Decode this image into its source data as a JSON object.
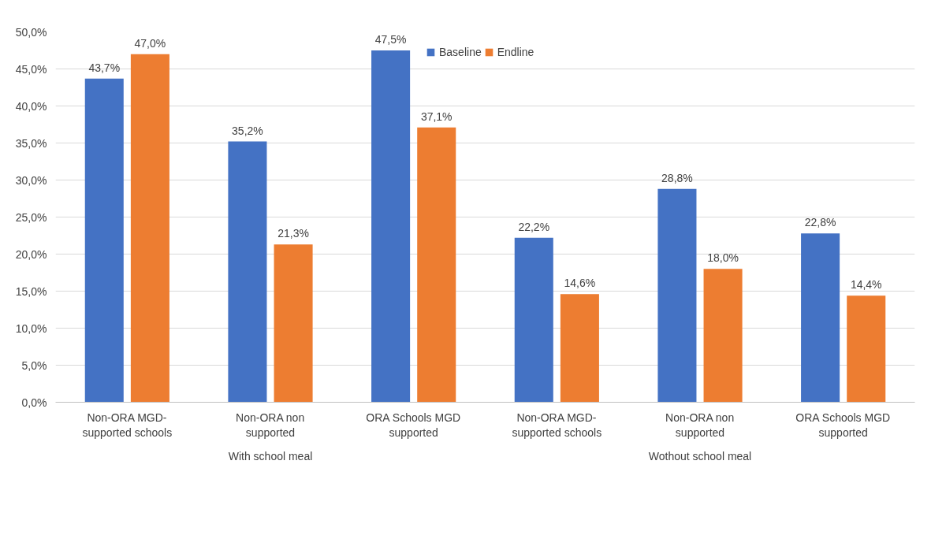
{
  "chart_data": {
    "type": "bar",
    "categories": [
      "Non-ORA MGD-supported schools",
      "Non-ORA non supported",
      "ORA Schools MGD supported",
      "Non-ORA MGD-supported schools",
      "Non-ORA non supported",
      "ORA Schools MGD supported"
    ],
    "series": [
      {
        "name": "Baseline",
        "color": "#4472c4",
        "values": [
          43.7,
          35.2,
          47.5,
          22.2,
          28.8,
          22.8
        ],
        "value_labels": [
          "43,7%",
          "35,2%",
          "47,5%",
          "22,2%",
          "28,8%",
          "22,8%"
        ]
      },
      {
        "name": "Endline",
        "color": "#ed7d31",
        "values": [
          47.0,
          21.3,
          37.1,
          14.6,
          18.0,
          14.4
        ],
        "value_labels": [
          "47,0%",
          "21,3%",
          "37,1%",
          "14,6%",
          "18,0%",
          "14,4%"
        ]
      }
    ],
    "annotations": [
      "With school meal",
      "Wothout school meal"
    ],
    "ylim": [
      0,
      50
    ],
    "yticks": [
      {
        "value": 0,
        "label": "0,0%"
      },
      {
        "value": 5,
        "label": "5,0%"
      },
      {
        "value": 10,
        "label": "10,0%"
      },
      {
        "value": 15,
        "label": "15,0%"
      },
      {
        "value": 20,
        "label": "20,0%"
      },
      {
        "value": 25,
        "label": "25,0%"
      },
      {
        "value": 30,
        "label": "30,0%"
      },
      {
        "value": 35,
        "label": "35,0%"
      },
      {
        "value": 40,
        "label": "40,0%"
      },
      {
        "value": 45,
        "label": "45,0%"
      },
      {
        "value": 50,
        "label": "50,0%"
      }
    ],
    "grid": "y",
    "legend": "top"
  }
}
